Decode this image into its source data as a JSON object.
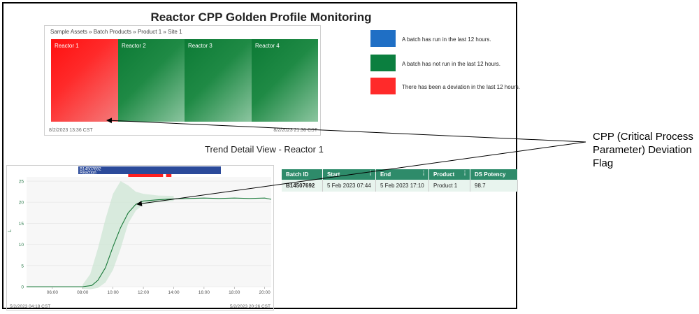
{
  "title": "Reactor CPP Golden Profile Monitoring",
  "treemap": {
    "breadcrumb": "Sample Assets » Batch Products » Product 1 » Site 1",
    "cells": [
      {
        "label": "Reactor 1",
        "status": "deviation"
      },
      {
        "label": "Reactor 2",
        "status": "not-run"
      },
      {
        "label": "Reactor 3",
        "status": "not-run"
      },
      {
        "label": "Reactor 4",
        "status": "not-run"
      }
    ],
    "start_time": "8/2/2023 13:36 CST",
    "end_time": "8/2/2023 21:36 CST"
  },
  "legend": [
    {
      "color": "#1f6fc5",
      "text": "A batch has run in the last 12 hours."
    },
    {
      "color": "#0b7f3f",
      "text": "A batch has not run in the last 12 hours."
    },
    {
      "color": "#ff2a2a",
      "text": "There has been a deviation in the last 12 hours."
    }
  ],
  "trend": {
    "subtitle": "Trend Detail View - Reactor 1",
    "capsule_id": "B14507692",
    "capsule_type": "Reaction",
    "y_label": "L",
    "start_time": "5/2/2023 04:18 CST",
    "end_time": "5/2/2023 20:26 CST"
  },
  "chart_data": {
    "type": "line",
    "x_ticks": [
      "06:00",
      "08:00",
      "10:00",
      "12:00",
      "14:00",
      "16:00",
      "18:00",
      "20:00"
    ],
    "y_ticks": [
      0,
      5,
      10,
      15,
      20,
      25
    ],
    "ylim": [
      0,
      26
    ],
    "xlim": [
      4.3,
      20.43
    ],
    "series": [
      {
        "x": [
          4.3,
          6.0,
          8.0,
          8.6,
          9.0,
          9.5,
          10.0,
          10.5,
          11.0,
          11.5,
          12.0,
          13.0,
          14.0,
          15.0,
          16.0,
          17.0,
          18.0,
          19.0,
          20.0,
          20.43
        ],
        "y": [
          0,
          0,
          0,
          0.3,
          1.5,
          4.5,
          9.5,
          14.0,
          17.5,
          19.5,
          20.3,
          20.6,
          20.8,
          20.9,
          21.0,
          20.9,
          21.0,
          20.9,
          21.0,
          20.7
        ]
      }
    ],
    "band": {
      "x": [
        8.0,
        8.5,
        9.0,
        9.5,
        10.0,
        10.5,
        11.0,
        11.5,
        12.0,
        13.0,
        14.0
      ],
      "upper": [
        0.5,
        3.0,
        9.0,
        16.0,
        22.0,
        25.0,
        24.0,
        22.5,
        22.0,
        21.6,
        21.5
      ],
      "lower": [
        -0.5,
        -0.6,
        -0.3,
        1.0,
        4.0,
        9.0,
        15.0,
        18.0,
        19.5,
        20.0,
        20.3
      ]
    },
    "capsule_range": [
      8.0,
      17.2
    ],
    "deviation_flags": [
      [
        11.0,
        13.3
      ],
      [
        13.5,
        13.85
      ]
    ]
  },
  "table": {
    "headers": [
      "Batch ID",
      "Start",
      "End",
      "Product",
      "DS Potency"
    ],
    "rows": [
      [
        "B14507692",
        "5 Feb 2023 07:44",
        "5 Feb 2023 17:10",
        "Product 1",
        "98.7"
      ]
    ]
  },
  "annotation": [
    "CPP (Critical Process",
    "Parameter) Deviation",
    "Flag"
  ]
}
